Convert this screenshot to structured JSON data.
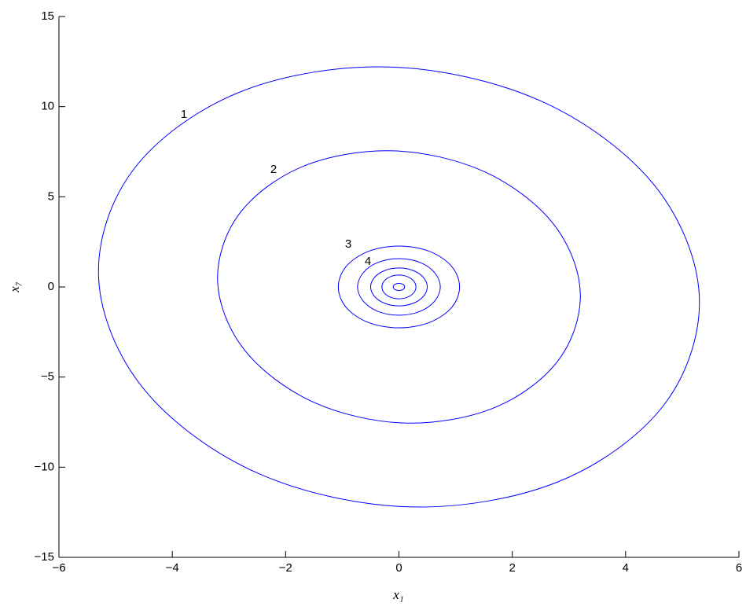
{
  "chart_data": {
    "type": "line",
    "xlabel": "x₁",
    "ylabel": "x₇",
    "annotations": [
      "1",
      "2",
      "3",
      "4"
    ],
    "closed": true,
    "xlim": [
      -6,
      6
    ],
    "xticks": [
      {
        "value": -6,
        "label": "−6"
      },
      {
        "value": -4,
        "label": "−4"
      },
      {
        "value": -2,
        "label": "−2"
      },
      0,
      2,
      4,
      6
    ],
    "ylim": [
      -15,
      15
    ],
    "yticks": [
      {
        "value": -15,
        "label": "−15"
      },
      {
        "value": -10,
        "label": "−10"
      },
      {
        "value": -5,
        "label": "−5"
      },
      0,
      5,
      10,
      15
    ],
    "series": [
      {
        "color": "#0000ff",
        "x": [
          5.3,
          4.5,
          2.5,
          -0.17,
          -2.8,
          -4.68,
          -5.3,
          -4.5,
          -2.5,
          0.17,
          2.8,
          4.68
        ],
        "y": [
          -0.5,
          5.67,
          10.32,
          12.2,
          10.82,
          6.53,
          0.5,
          -5.67,
          -10.32,
          -12.2,
          -10.82,
          -6.53
        ]
      },
      {
        "color": "#0000ff",
        "x": [
          3.2,
          2.72,
          1.51,
          -0.1,
          -1.69,
          -2.82,
          -3.2,
          -2.72,
          -1.51,
          0.1,
          1.69,
          2.82
        ],
        "y": [
          -0.3,
          3.52,
          6.39,
          7.55,
          6.69,
          4.04,
          0.3,
          -3.52,
          -6.39,
          -7.55,
          -6.69,
          -4.04
        ]
      },
      {
        "color": "#0000ff",
        "x": [
          1.07,
          0.93,
          0.54,
          0,
          -0.54,
          -0.93,
          -1.07,
          -0.93,
          -0.54,
          0,
          0.54,
          0.93
        ],
        "y": [
          0,
          1.14,
          1.97,
          2.27,
          1.97,
          1.14,
          0,
          -1.14,
          -1.97,
          -2.27,
          -1.97,
          -1.14
        ]
      },
      {
        "color": "#0000ff",
        "x": [
          0.73,
          0.63,
          0.37,
          0,
          -0.37,
          -0.63,
          -0.73,
          -0.63,
          -0.37,
          0,
          0.37,
          0.63
        ],
        "y": [
          0,
          0.79,
          1.36,
          1.57,
          1.36,
          0.79,
          0,
          -0.79,
          -1.36,
          -1.57,
          -1.36,
          -0.79
        ]
      },
      {
        "color": "#0000ff",
        "x": [
          0.5,
          0.43,
          0.25,
          0,
          -0.25,
          -0.43,
          -0.5,
          -0.43,
          -0.25,
          0,
          0.25,
          0.43
        ],
        "y": [
          0,
          0.53,
          0.91,
          1.05,
          0.91,
          0.53,
          0,
          -0.53,
          -0.91,
          -1.05,
          -0.91,
          -0.53
        ]
      },
      {
        "color": "#0000ff",
        "x": [
          0.3,
          0.26,
          0.15,
          0,
          -0.15,
          -0.26,
          -0.3,
          -0.26,
          -0.15,
          0,
          0.15,
          0.26
        ],
        "y": [
          0,
          0.33,
          0.57,
          0.66,
          0.57,
          0.33,
          0,
          -0.33,
          -0.57,
          -0.66,
          -0.57,
          -0.33
        ]
      },
      {
        "color": "#0000ff",
        "x": [
          0.1,
          0.09,
          0.05,
          0,
          -0.05,
          -0.09,
          -0.1,
          -0.09,
          -0.05,
          0,
          0.05,
          0.09
        ],
        "y": [
          0,
          0.1,
          0.17,
          0.2,
          0.17,
          0.1,
          0,
          -0.1,
          -0.17,
          -0.2,
          -0.17,
          -0.1
        ]
      }
    ]
  }
}
